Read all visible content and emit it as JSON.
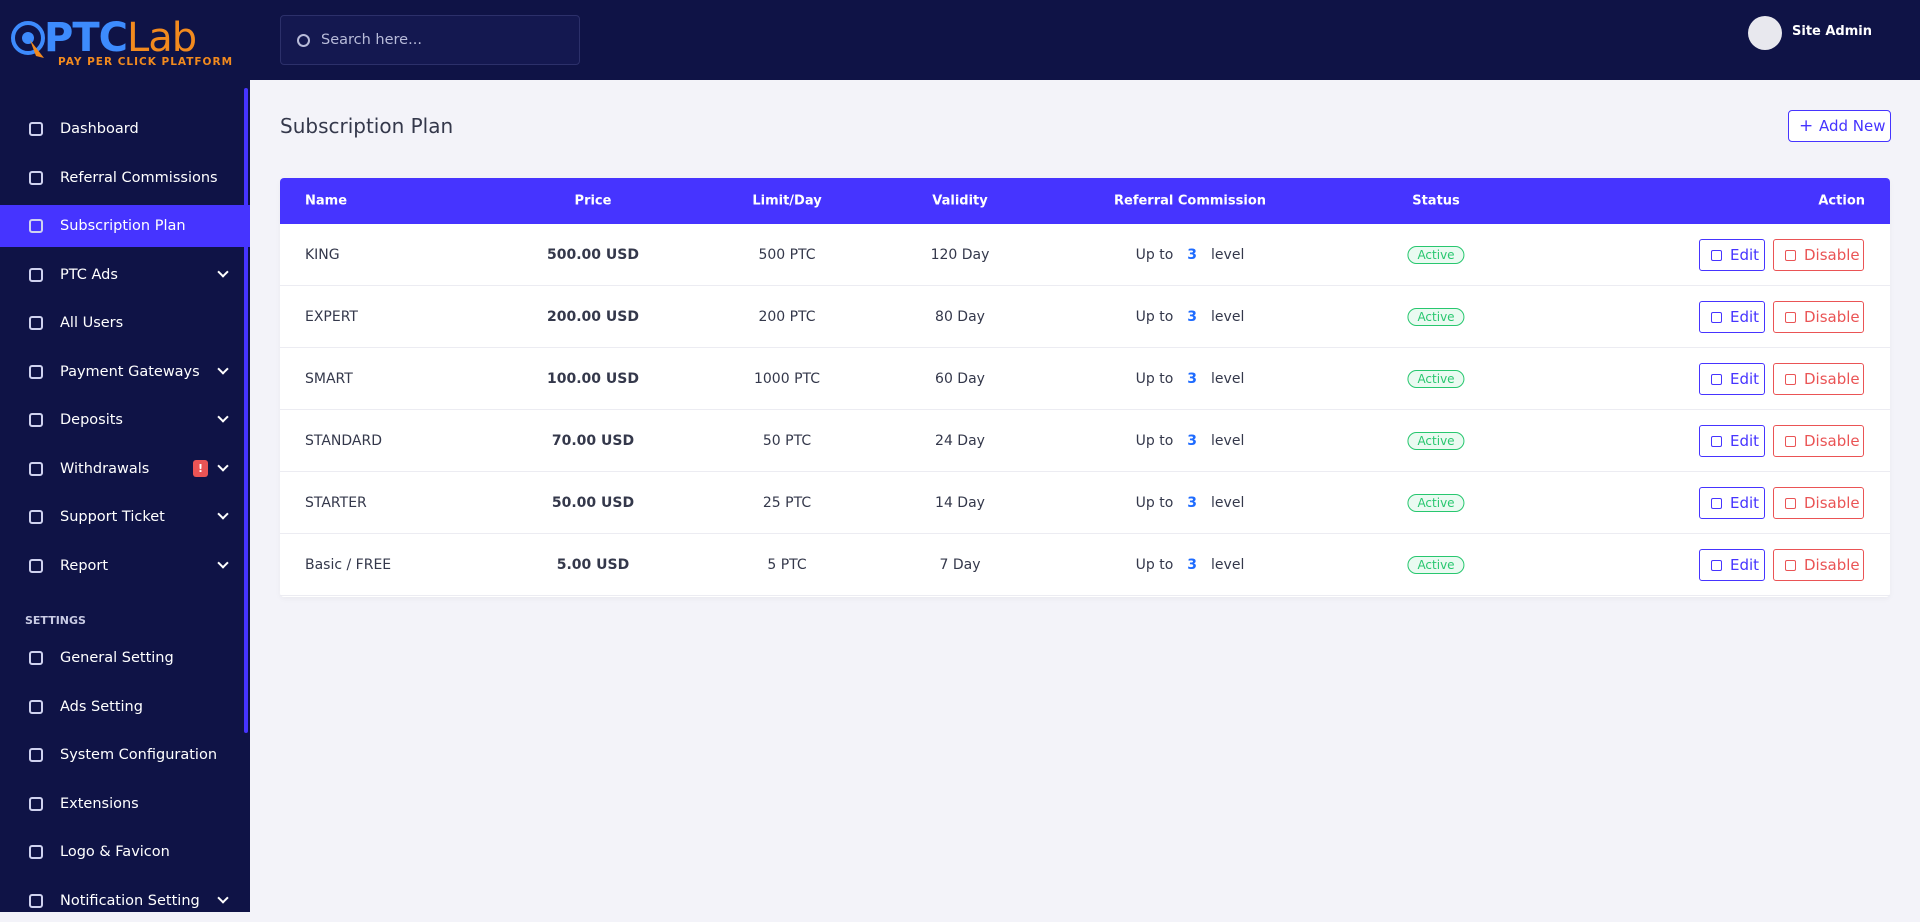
{
  "logo": {
    "brand_a": "PTC",
    "brand_b": "Lab",
    "tagline": "PAY PER CLICK PLATFORM"
  },
  "search_placeholder": "Search here...",
  "user": "Site Admin",
  "sidebar": {
    "items": [
      {
        "label": "Dashboard"
      },
      {
        "label": "Referral Commissions"
      },
      {
        "label": "Subscription Plan",
        "active": true
      },
      {
        "label": "PTC Ads",
        "submenu": true
      },
      {
        "label": "All Users"
      },
      {
        "label": "Payment Gateways",
        "submenu": true
      },
      {
        "label": "Deposits",
        "submenu": true
      },
      {
        "label": "Withdrawals",
        "submenu": true,
        "badge": "!"
      },
      {
        "label": "Support Ticket",
        "submenu": true
      },
      {
        "label": "Report",
        "submenu": true
      }
    ],
    "settings_heading": "SETTINGS",
    "settings_items": [
      {
        "label": "General Setting"
      },
      {
        "label": "Ads Setting"
      },
      {
        "label": "System Configuration"
      },
      {
        "label": "Extensions"
      },
      {
        "label": "Logo & Favicon"
      },
      {
        "label": "Notification Setting",
        "submenu": true
      }
    ]
  },
  "page_title": "Subscription Plan",
  "add_button": "Add New",
  "table": {
    "headers": [
      "Name",
      "Price",
      "Limit/Day",
      "Validity",
      "Referral Commission",
      "Status",
      "Action"
    ],
    "commission_prefix": "Up to",
    "commission_suffix": "level",
    "edit": "Edit",
    "disable": "Disable",
    "rows": [
      {
        "name": "KING",
        "price": "500.00 USD",
        "limit": "500 PTC",
        "validity": "120 Day",
        "level": 3,
        "status": "Active"
      },
      {
        "name": "EXPERT",
        "price": "200.00 USD",
        "limit": "200 PTC",
        "validity": "80 Day",
        "level": 3,
        "status": "Active"
      },
      {
        "name": "SMART",
        "price": "100.00 USD",
        "limit": "1000 PTC",
        "validity": "60 Day",
        "level": 3,
        "status": "Active"
      },
      {
        "name": "STANDARD",
        "price": "70.00 USD",
        "limit": "50 PTC",
        "validity": "24 Day",
        "level": 3,
        "status": "Active"
      },
      {
        "name": "STARTER",
        "price": "50.00 USD",
        "limit": "25 PTC",
        "validity": "14 Day",
        "level": 3,
        "status": "Active"
      },
      {
        "name": "Basic / FREE",
        "price": "5.00 USD",
        "limit": "5 PTC",
        "validity": "7 Day",
        "level": 3,
        "status": "Active"
      }
    ]
  }
}
